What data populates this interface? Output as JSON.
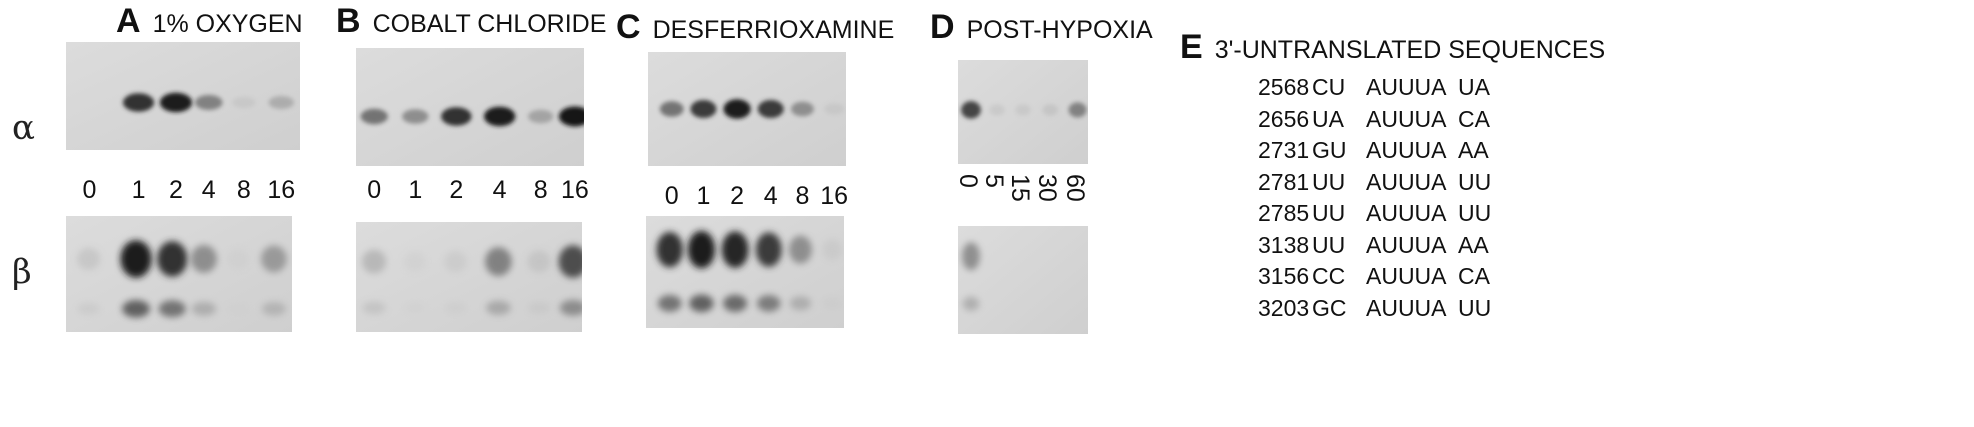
{
  "row_labels": {
    "alpha": "α",
    "beta": "β"
  },
  "panels": [
    {
      "letter": "A",
      "name": "1% OXYGEN",
      "lanes": [
        "0",
        "1",
        "2",
        "4",
        "8",
        "16"
      ],
      "alpha_intensity": [
        0.0,
        0.85,
        0.95,
        0.5,
        0.12,
        0.3
      ],
      "beta_intensity": [
        0.15,
        0.95,
        0.85,
        0.45,
        0.05,
        0.4
      ]
    },
    {
      "letter": "B",
      "name": "COBALT CHLORIDE",
      "lanes": [
        "0",
        "1",
        "2",
        "4",
        "8",
        "16"
      ],
      "alpha_intensity": [
        0.55,
        0.45,
        0.85,
        0.95,
        0.35,
        1.0
      ],
      "beta_intensity": [
        0.25,
        0.05,
        0.1,
        0.5,
        0.15,
        0.7
      ]
    },
    {
      "letter": "C",
      "name": "DESFERRIOXAMINE",
      "lanes": [
        "0",
        "1",
        "2",
        "4",
        "8",
        "16"
      ],
      "alpha_intensity": [
        0.55,
        0.8,
        0.95,
        0.8,
        0.45,
        0.12
      ],
      "beta_intensity": [
        0.85,
        0.95,
        0.9,
        0.8,
        0.45,
        0.1
      ]
    },
    {
      "letter": "D",
      "name": "POST-HYPOXIA",
      "lanes": [
        "0",
        "5",
        "15",
        "30",
        "60"
      ],
      "alpha_intensity": [
        0.75,
        0.12,
        0.12,
        0.15,
        0.5
      ],
      "beta_intensity": [
        0.45,
        0.0,
        0.0,
        0.0,
        0.0
      ]
    }
  ],
  "sequences": {
    "letter": "E",
    "title": "3'-UNTRANSLATED SEQUENCES",
    "rows": [
      {
        "pos": "2568",
        "left": "CU",
        "core": "AUUUA",
        "right": "UA"
      },
      {
        "pos": "2656",
        "left": "UA",
        "core": "AUUUA",
        "right": "CA"
      },
      {
        "pos": "2731",
        "left": "GU",
        "core": "AUUUA",
        "right": "AA"
      },
      {
        "pos": "2781",
        "left": "UU",
        "core": "AUUUA",
        "right": "UU"
      },
      {
        "pos": "2785",
        "left": "UU",
        "core": "AUUUA",
        "right": "UU"
      },
      {
        "pos": "3138",
        "left": "UU",
        "core": "AUUUA",
        "right": "AA"
      },
      {
        "pos": "3156",
        "left": "CC",
        "core": "AUUUA",
        "right": "CA"
      },
      {
        "pos": "3203",
        "left": "GC",
        "core": "AUUUA",
        "right": "UU"
      }
    ]
  }
}
